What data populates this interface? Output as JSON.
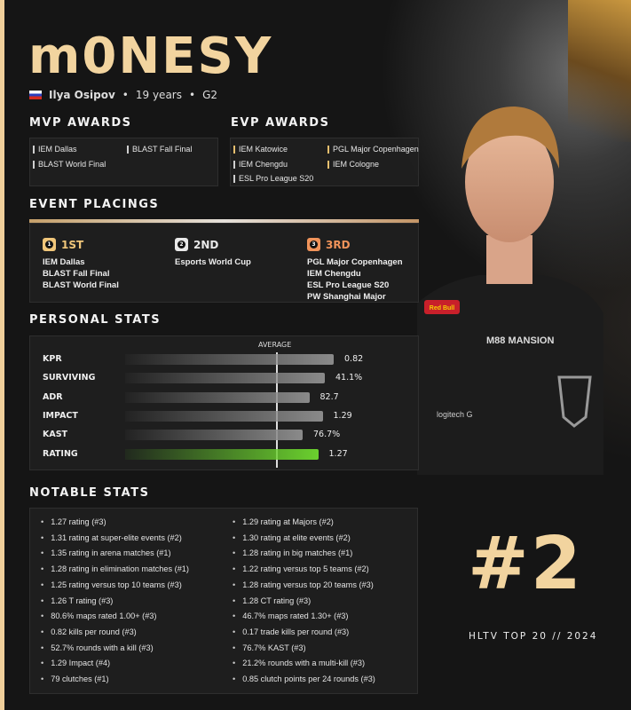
{
  "colors": {
    "accent_gold": "#f2d49f",
    "rating_bar": "#6bd12e",
    "background": "#151515"
  },
  "header": {
    "nickname": "m0NESY",
    "flag_icon": "russia-flag",
    "real_name": "Ilya Osipov",
    "age": "19 years",
    "team": "G2",
    "separator": "•"
  },
  "mvp": {
    "title": "MVP AWARDS",
    "items": [
      "IEM Dallas",
      "BLAST Fall Final",
      "BLAST World Final"
    ]
  },
  "evp": {
    "title": "EVP AWARDS",
    "items": [
      "IEM Katowice",
      "PGL Major Copenhagen",
      "IEM Chengdu",
      "IEM Cologne",
      "ESL Pro League S20"
    ]
  },
  "placings": {
    "title": "EVENT PLACINGS",
    "groups": [
      {
        "rank": "1",
        "label": "1ST",
        "color": "#f0c67a",
        "events": [
          "IEM Dallas",
          "BLAST Fall Final",
          "BLAST World Final"
        ]
      },
      {
        "rank": "2",
        "label": "2ND",
        "color": "#e8e8e8",
        "events": [
          "Esports World Cup"
        ]
      },
      {
        "rank": "3",
        "label": "3RD",
        "color": "#f0935a",
        "events": [
          "PGL Major Copenhagen",
          "IEM Chengdu",
          "ESL Pro League S20",
          "PW Shanghai Major"
        ]
      }
    ]
  },
  "personal": {
    "title": "PERSONAL STATS",
    "average_label": "AVERAGE",
    "average_fill": 0.68,
    "stats": [
      {
        "label": "KPR",
        "value": "0.82",
        "fill": 0.94
      },
      {
        "label": "SURVIVING",
        "value": "41.1%",
        "fill": 0.9
      },
      {
        "label": "ADR",
        "value": "82.7",
        "fill": 0.83
      },
      {
        "label": "IMPACT",
        "value": "1.29",
        "fill": 0.89
      },
      {
        "label": "KAST",
        "value": "76.7%",
        "fill": 0.8
      },
      {
        "label": "RATING",
        "value": "1.27",
        "fill": 0.87
      }
    ]
  },
  "notable": {
    "title": "NOTABLE STATS",
    "left": [
      "1.27 rating (#3)",
      "1.31 rating at super-elite events (#2)",
      "1.35 rating in arena matches (#1)",
      "1.28 rating in elimination matches (#1)",
      "1.25 rating versus top 10 teams (#3)",
      "1.26 T rating (#3)",
      "80.6% maps rated 1.00+ (#3)",
      "0.82 kills per round (#3)",
      "52.7% rounds with a kill (#3)",
      "1.29 Impact (#4)",
      "79 clutches (#1)"
    ],
    "right": [
      "1.29 rating at Majors (#2)",
      "1.30 rating at elite events (#2)",
      "1.28 rating in big matches (#1)",
      "1.22 rating versus top 5 teams (#2)",
      "1.28 rating versus top 20 teams (#3)",
      "1.28 CT rating (#3)",
      "46.7% maps rated 1.30+ (#3)",
      "0.17 trade kills per round (#3)",
      "76.7% KAST (#3)",
      "21.2% rounds with a multi-kill (#3)",
      "0.85 clutch points per 24 rounds (#3)"
    ]
  },
  "ranking": {
    "rank": "#2",
    "caption": "HLTV TOP 20 // 2024"
  },
  "sponsors": [
    "Red Bull",
    "M88 MANSION",
    "logitech G",
    "G2"
  ]
}
